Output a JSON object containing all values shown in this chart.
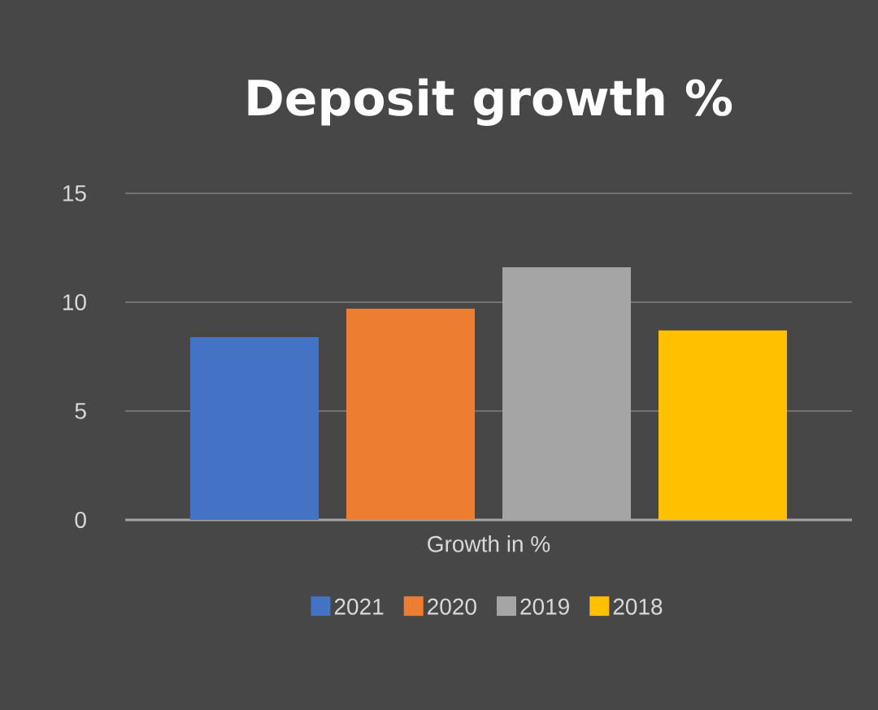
{
  "chart_data": {
    "type": "bar",
    "title": "Deposit growth %",
    "categories": [
      "Growth in %"
    ],
    "series": [
      {
        "name": "2021",
        "color": "#4472c4",
        "values": [
          8.4
        ]
      },
      {
        "name": "2020",
        "color": "#ed7d31",
        "values": [
          9.7
        ]
      },
      {
        "name": "2019",
        "color": "#a5a5a5",
        "values": [
          11.6
        ]
      },
      {
        "name": "2018",
        "color": "#ffc000",
        "values": [
          8.7
        ]
      }
    ],
    "ylim": [
      0,
      15
    ],
    "yticks": [
      0,
      5,
      10,
      15
    ],
    "grid": "y",
    "legend": "bottom"
  }
}
